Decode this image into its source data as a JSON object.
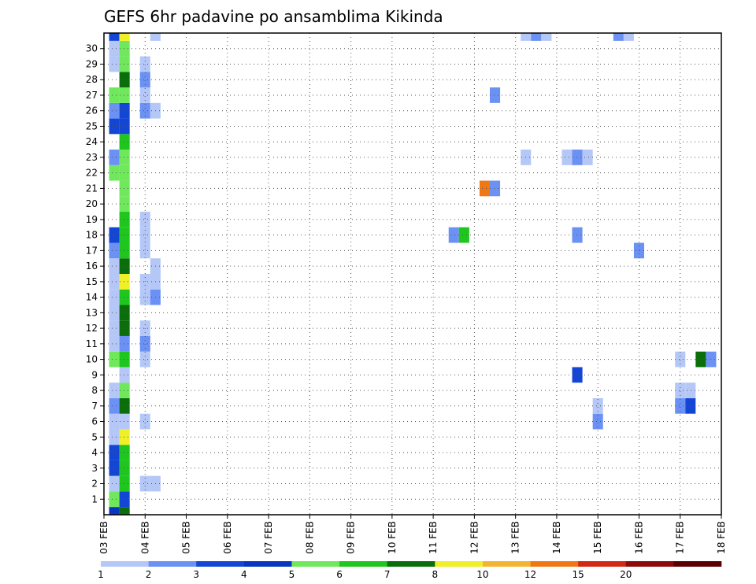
{
  "chart_data": {
    "type": "heatmap",
    "title": "GEFS 6hr padavine po ansamblima Kikinda",
    "x_labels": [
      "03 FEB",
      "04 FEB",
      "05 FEB",
      "06 FEB",
      "07 FEB",
      "08 FEB",
      "09 FEB",
      "10 FEB",
      "11 FEB",
      "12 FEB",
      "13 FEB",
      "14 FEB",
      "15 FEB",
      "16 FEB",
      "17 FEB",
      "18 FEB"
    ],
    "y_labels": [
      "1",
      "2",
      "3",
      "4",
      "5",
      "6",
      "7",
      "8",
      "9",
      "10",
      "11",
      "12",
      "13",
      "14",
      "15",
      "16",
      "17",
      "18",
      "19",
      "20",
      "21",
      "22",
      "23",
      "24",
      "25",
      "26",
      "27",
      "28",
      "29",
      "30"
    ],
    "grid": true,
    "colorbar": {
      "labels": [
        "1",
        "2",
        "3",
        "4",
        "5",
        "6",
        "7",
        "8",
        "10",
        "12",
        "15",
        "20"
      ],
      "colors": [
        "#b4c7f7",
        "#6a91f3",
        "#1446d6",
        "#0a35c0",
        "#6fe85c",
        "#1ec61e",
        "#0a6e0a",
        "#f0f028",
        "#f4b432",
        "#f07814",
        "#d22814",
        "#8c0a0a",
        "#5a0000"
      ]
    },
    "cells": [
      {
        "t": 3.25,
        "m": 0,
        "c": 3
      },
      {
        "t": 3.5,
        "m": 0,
        "c": 6
      },
      {
        "t": 3.25,
        "m": 1,
        "c": 4
      },
      {
        "t": 3.5,
        "m": 1,
        "c": 2
      },
      {
        "t": 3.25,
        "m": 2,
        "c": 0
      },
      {
        "t": 3.5,
        "m": 2,
        "c": 5
      },
      {
        "t": 4.0,
        "m": 2,
        "c": 0
      },
      {
        "t": 4.25,
        "m": 2,
        "c": 0
      },
      {
        "t": 3.25,
        "m": 3,
        "c": 2
      },
      {
        "t": 3.5,
        "m": 3,
        "c": 5
      },
      {
        "t": 3.25,
        "m": 4,
        "c": 2
      },
      {
        "t": 3.5,
        "m": 4,
        "c": 5
      },
      {
        "t": 3.25,
        "m": 5,
        "c": 0
      },
      {
        "t": 3.5,
        "m": 5,
        "c": 7
      },
      {
        "t": 3.25,
        "m": 6,
        "c": 0
      },
      {
        "t": 3.5,
        "m": 6,
        "c": 0
      },
      {
        "t": 4.0,
        "m": 6,
        "c": 0
      },
      {
        "t": 15.0,
        "m": 6,
        "c": 1
      },
      {
        "t": 3.25,
        "m": 7,
        "c": 1
      },
      {
        "t": 3.5,
        "m": 7,
        "c": 6
      },
      {
        "t": 15.0,
        "m": 7,
        "c": 0
      },
      {
        "t": 17.0,
        "m": 7,
        "c": 1
      },
      {
        "t": 17.25,
        "m": 7,
        "c": 2
      },
      {
        "t": 3.25,
        "m": 8,
        "c": 0
      },
      {
        "t": 3.5,
        "m": 8,
        "c": 4
      },
      {
        "t": 17.0,
        "m": 8,
        "c": 0
      },
      {
        "t": 17.25,
        "m": 8,
        "c": 0
      },
      {
        "t": 3.5,
        "m": 9,
        "c": 0
      },
      {
        "t": 14.5,
        "m": 9,
        "c": 2
      },
      {
        "t": 3.25,
        "m": 10,
        "c": 4
      },
      {
        "t": 3.5,
        "m": 10,
        "c": 5
      },
      {
        "t": 4.0,
        "m": 10,
        "c": 0
      },
      {
        "t": 17.0,
        "m": 10,
        "c": 0
      },
      {
        "t": 17.5,
        "m": 10,
        "c": 6
      },
      {
        "t": 17.75,
        "m": 10,
        "c": 1
      },
      {
        "t": 3.25,
        "m": 11,
        "c": 0
      },
      {
        "t": 3.5,
        "m": 11,
        "c": 1
      },
      {
        "t": 4.0,
        "m": 11,
        "c": 1
      },
      {
        "t": 3.25,
        "m": 12,
        "c": 0
      },
      {
        "t": 3.5,
        "m": 12,
        "c": 6
      },
      {
        "t": 4.0,
        "m": 12,
        "c": 0
      },
      {
        "t": 3.25,
        "m": 13,
        "c": 0
      },
      {
        "t": 3.5,
        "m": 13,
        "c": 6
      },
      {
        "t": 3.25,
        "m": 14,
        "c": 0
      },
      {
        "t": 3.5,
        "m": 14,
        "c": 5
      },
      {
        "t": 4.0,
        "m": 14,
        "c": 0
      },
      {
        "t": 4.25,
        "m": 14,
        "c": 1
      },
      {
        "t": 3.25,
        "m": 15,
        "c": 0
      },
      {
        "t": 3.5,
        "m": 15,
        "c": 7
      },
      {
        "t": 4.0,
        "m": 15,
        "c": 0
      },
      {
        "t": 4.25,
        "m": 15,
        "c": 0
      },
      {
        "t": 3.25,
        "m": 16,
        "c": 0
      },
      {
        "t": 3.5,
        "m": 16,
        "c": 6
      },
      {
        "t": 4.25,
        "m": 16,
        "c": 0
      },
      {
        "t": 3.25,
        "m": 17,
        "c": 1
      },
      {
        "t": 3.5,
        "m": 17,
        "c": 5
      },
      {
        "t": 4.0,
        "m": 17,
        "c": 0
      },
      {
        "t": 16.0,
        "m": 17,
        "c": 1
      },
      {
        "t": 3.25,
        "m": 18,
        "c": 2
      },
      {
        "t": 3.5,
        "m": 18,
        "c": 5
      },
      {
        "t": 4.0,
        "m": 18,
        "c": 0
      },
      {
        "t": 11.5,
        "m": 18,
        "c": 1
      },
      {
        "t": 11.75,
        "m": 18,
        "c": 5
      },
      {
        "t": 14.5,
        "m": 18,
        "c": 1
      },
      {
        "t": 3.5,
        "m": 19,
        "c": 5
      },
      {
        "t": 4.0,
        "m": 19,
        "c": 0
      },
      {
        "t": 3.5,
        "m": 20,
        "c": 4
      },
      {
        "t": 3.5,
        "m": 21,
        "c": 4
      },
      {
        "t": 12.25,
        "m": 21,
        "c": 9
      },
      {
        "t": 12.5,
        "m": 21,
        "c": 1
      },
      {
        "t": 3.25,
        "m": 22,
        "c": 4
      },
      {
        "t": 3.5,
        "m": 22,
        "c": 4
      },
      {
        "t": 3.25,
        "m": 23,
        "c": 1
      },
      {
        "t": 3.5,
        "m": 23,
        "c": 4
      },
      {
        "t": 13.25,
        "m": 23,
        "c": 0
      },
      {
        "t": 14.25,
        "m": 23,
        "c": 0
      },
      {
        "t": 14.5,
        "m": 23,
        "c": 1
      },
      {
        "t": 14.75,
        "m": 23,
        "c": 0
      },
      {
        "t": 3.5,
        "m": 24,
        "c": 5
      },
      {
        "t": 3.25,
        "m": 25,
        "c": 2
      },
      {
        "t": 3.5,
        "m": 25,
        "c": 2
      },
      {
        "t": 3.25,
        "m": 26,
        "c": 1
      },
      {
        "t": 3.5,
        "m": 26,
        "c": 2
      },
      {
        "t": 4.0,
        "m": 26,
        "c": 1
      },
      {
        "t": 4.25,
        "m": 26,
        "c": 0
      },
      {
        "t": 3.25,
        "m": 27,
        "c": 4
      },
      {
        "t": 3.5,
        "m": 27,
        "c": 4
      },
      {
        "t": 4.0,
        "m": 27,
        "c": 0
      },
      {
        "t": 12.5,
        "m": 27,
        "c": 1
      },
      {
        "t": 3.5,
        "m": 28,
        "c": 6
      },
      {
        "t": 4.0,
        "m": 28,
        "c": 1
      },
      {
        "t": 3.25,
        "m": 29,
        "c": 0
      },
      {
        "t": 3.5,
        "m": 29,
        "c": 4
      },
      {
        "t": 4.0,
        "m": 29,
        "c": 0
      },
      {
        "t": 3.25,
        "m": 30,
        "c": 0
      },
      {
        "t": 3.5,
        "m": 30,
        "c": 4
      },
      {
        "t": 3.25,
        "m": 31,
        "c": 2
      },
      {
        "t": 3.5,
        "m": 31,
        "c": 7
      },
      {
        "t": 4.25,
        "m": 31,
        "c": 0
      },
      {
        "t": 13.25,
        "m": 31,
        "c": 0
      },
      {
        "t": 13.5,
        "m": 31,
        "c": 1
      },
      {
        "t": 13.75,
        "m": 31,
        "c": 0
      },
      {
        "t": 15.5,
        "m": 31,
        "c": 1
      },
      {
        "t": 15.75,
        "m": 31,
        "c": 0
      }
    ]
  }
}
